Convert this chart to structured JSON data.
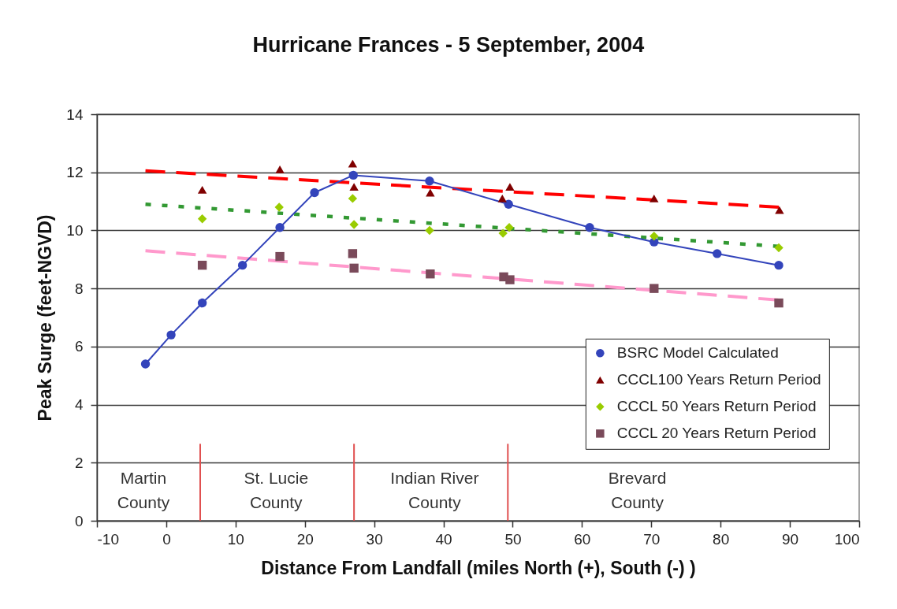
{
  "chart_data": {
    "type": "line",
    "title": "Hurricane Frances - 5 September, 2004",
    "xlabel": "Distance From Landfall (miles North (+), South (-) )",
    "ylabel": "Peak Surge (feet-NGVD)",
    "xlim": [
      -10,
      100
    ],
    "xticks": [
      -10,
      0,
      10,
      20,
      30,
      40,
      50,
      60,
      70,
      80,
      90,
      100
    ],
    "ylim": [
      0,
      14
    ],
    "yticks": [
      0,
      2,
      4,
      6,
      8,
      10,
      12,
      14
    ],
    "grid": "y",
    "legend": "bottom right",
    "series": [
      {
        "color": "#ff0000",
        "line_style": "dashed",
        "marker": "none",
        "x": [
          -3,
          88.4
        ],
        "values": [
          12.05,
          10.8
        ]
      },
      {
        "color": "#339933",
        "line_style": "dotted",
        "marker": "none",
        "x": [
          -3,
          88.4
        ],
        "values": [
          10.9,
          9.45
        ]
      },
      {
        "color": "#ff99cc",
        "line_style": "dashed",
        "marker": "none",
        "x": [
          -3,
          88.4
        ],
        "values": [
          9.3,
          7.6
        ]
      },
      {
        "color": "#e05050",
        "line_style": "solid",
        "marker": "none",
        "x": [
          4.9,
          4.9
        ],
        "values": [
          0,
          2.65
        ]
      },
      {
        "color": "#e05050",
        "line_style": "solid",
        "marker": "none",
        "x": [
          27.1,
          27.1
        ],
        "values": [
          0,
          2.65
        ]
      },
      {
        "color": "#e05050",
        "line_style": "solid",
        "marker": "none",
        "x": [
          49.3,
          49.3
        ],
        "values": [
          0,
          2.65
        ]
      },
      {
        "name": "BSRC Model Calculated",
        "color": "#3344bb",
        "line_style": "solid",
        "marker": "circle",
        "x": [
          -3,
          0.7,
          5.2,
          11.0,
          16.4,
          21.4,
          27.0,
          38.0,
          49.4,
          61.1,
          70.4,
          79.5,
          88.4
        ],
        "values": [
          5.4,
          6.4,
          7.5,
          8.8,
          10.1,
          11.3,
          11.9,
          11.7,
          10.9,
          10.1,
          9.6,
          9.2,
          8.8
        ]
      },
      {
        "name": "CCCL100 Years Return Period",
        "type": "scatter",
        "color": "#800000",
        "marker": "triangle",
        "x": [
          5.2,
          16.4,
          26.9,
          27.1,
          38.1,
          48.5,
          49.6,
          70.4,
          88.5
        ],
        "values": [
          11.4,
          12.1,
          12.3,
          11.5,
          11.3,
          11.1,
          11.5,
          11.1,
          10.7
        ]
      },
      {
        "name": "CCCL 50 Years Return Period",
        "type": "scatter",
        "color": "#99cc00",
        "marker": "diamond",
        "x": [
          5.2,
          16.3,
          26.9,
          27.1,
          38.0,
          48.6,
          49.5,
          70.4,
          88.4
        ],
        "values": [
          10.4,
          10.8,
          11.1,
          10.2,
          10.0,
          9.9,
          10.1,
          9.8,
          9.4
        ]
      },
      {
        "name": "CCCL 20 Years Return Period",
        "type": "scatter",
        "color": "#7a4a5a",
        "marker": "square",
        "x": [
          5.2,
          16.4,
          26.9,
          27.1,
          38.1,
          48.7,
          49.6,
          70.4,
          88.4
        ],
        "values": [
          8.8,
          9.1,
          9.2,
          8.7,
          8.5,
          8.4,
          8.3,
          8.0,
          7.5
        ]
      }
    ],
    "annotations": [
      "Martin\nCounty",
      "St. Lucie\nCounty",
      "Indian River\nCounty",
      "Brevard\nCounty"
    ]
  }
}
